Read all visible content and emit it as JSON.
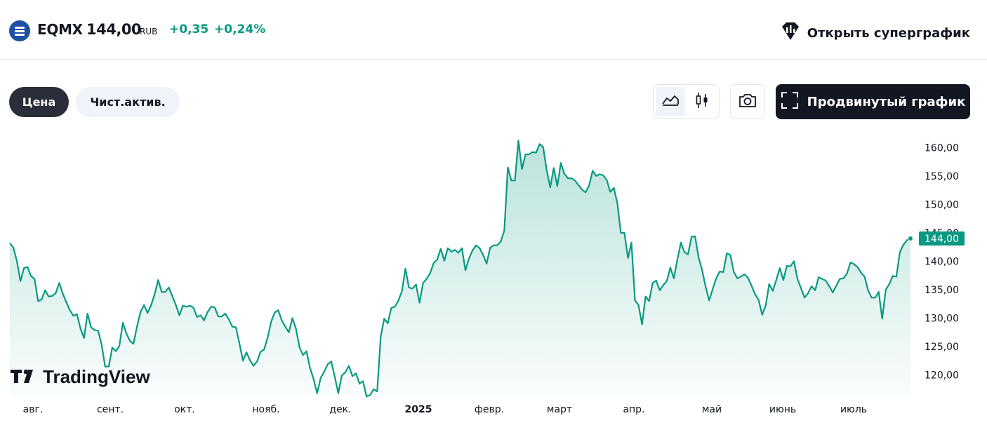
{
  "header": {
    "ticker": "EQMX",
    "price": "144,00",
    "currency": "RUB",
    "change": "+0,35",
    "change_percent": "+0,24%",
    "supergraph_label": "Открыть суперграфик",
    "logo_icon": "fund-logo-icon",
    "positive_color": "#089981"
  },
  "tabs": [
    {
      "label": "Цена",
      "active": true
    },
    {
      "label": "Чист.актив.",
      "active": false
    }
  ],
  "toolbar": {
    "area_chart_icon": "area-chart-icon",
    "candles_icon": "candlestick-icon",
    "camera_icon": "camera-icon",
    "advanced_label": "Продвинутый график"
  },
  "chart_data": {
    "type": "area",
    "x_tick_labels": [
      "авг.",
      "сент.",
      "окт.",
      "нояб.",
      "дек.",
      "2025",
      "февр.",
      "март",
      "апр.",
      "май",
      "июнь",
      "июль"
    ],
    "y_tick_labels": [
      "120,00",
      "125,00",
      "130,00",
      "135,00",
      "140,00",
      "145,00",
      "150,00",
      "155,00",
      "160,00"
    ],
    "ylim": [
      116.5,
      162.5
    ],
    "last_value": 144.0,
    "last_value_label": "144,00",
    "line_color": "#089981",
    "watermark": "TradingView",
    "values": [
      143.2,
      142.4,
      140.0,
      136.5,
      138.8,
      139.0,
      137.4,
      136.9,
      133.0,
      133.3,
      134.9,
      133.8,
      133.9,
      134.4,
      136.2,
      134.3,
      132.8,
      131.4,
      130.4,
      130.7,
      128.2,
      126.5,
      130.8,
      128.4,
      127.9,
      127.8,
      125.3,
      121.5,
      121.5,
      124.8,
      124.2,
      125.1,
      129.2,
      127.3,
      126.0,
      125.5,
      128.5,
      131.1,
      132.3,
      130.9,
      132.3,
      134.2,
      136.7,
      134.6,
      134.6,
      135.4,
      133.9,
      132.3,
      130.5,
      132.2,
      132.0,
      132.2,
      131.8,
      130.2,
      130.5,
      129.6,
      131.1,
      132.0,
      131.9,
      130.3,
      130.3,
      130.8,
      129.8,
      128.5,
      128.4,
      125.6,
      122.5,
      124.0,
      122.6,
      121.6,
      122.4,
      124.1,
      124.5,
      126.6,
      129.4,
      131.0,
      131.4,
      129.6,
      128.5,
      127.5,
      130.0,
      128.2,
      124.9,
      123.5,
      124.2,
      121.2,
      119.3,
      116.8,
      119.5,
      120.6,
      121.9,
      122.4,
      119.7,
      116.8,
      119.9,
      120.5,
      121.6,
      119.8,
      120.3,
      118.5,
      118.9,
      116.2,
      116.5,
      117.5,
      117.1,
      126.7,
      129.9,
      129.1,
      131.8,
      132.0,
      133.1,
      134.7,
      138.7,
      135.4,
      135.2,
      135.9,
      132.7,
      136.2,
      136.9,
      137.9,
      139.7,
      140.3,
      142.2,
      140.1,
      142.3,
      141.7,
      142.0,
      141.5,
      142.3,
      138.4,
      140.5,
      141.9,
      142.8,
      142.3,
      141.1,
      139.6,
      142.4,
      142.8,
      142.8,
      143.5,
      145.4,
      156.5,
      154.2,
      154.2,
      161.2,
      156.2,
      158.8,
      158.8,
      159.2,
      159.1,
      160.6,
      160.1,
      156.0,
      153.0,
      156.4,
      153.2,
      157.3,
      155.4,
      154.6,
      154.6,
      154.2,
      153.4,
      152.6,
      152.1,
      153.3,
      155.9,
      155.0,
      155.3,
      155.1,
      154.3,
      152.2,
      152.9,
      150.2,
      145.0,
      145.0,
      140.6,
      143.3,
      133.1,
      132.3,
      128.9,
      133.8,
      133.0,
      136.2,
      136.6,
      134.9,
      135.8,
      136.5,
      138.9,
      137.0,
      140.3,
      143.3,
      141.6,
      141.2,
      144.3,
      144.4,
      140.7,
      138.5,
      135.5,
      133.1,
      135.1,
      137.0,
      138.2,
      138.1,
      141.4,
      141.1,
      138.1,
      137.0,
      137.3,
      137.7,
      137.1,
      135.7,
      134.2,
      133.2,
      130.6,
      132.2,
      136.0,
      134.8,
      136.7,
      138.8,
      136.7,
      139.2,
      139.1,
      140.0,
      136.9,
      135.3,
      133.6,
      134.4,
      135.6,
      134.9,
      137.2,
      136.9,
      136.6,
      135.6,
      134.5,
      135.7,
      136.9,
      137.0,
      137.8,
      139.8,
      139.5,
      139.0,
      138.0,
      137.3,
      134.9,
      133.6,
      133.6,
      134.6,
      129.9,
      135.0,
      136.0,
      137.4,
      137.3,
      141.6,
      142.9,
      143.7,
      144.0
    ]
  }
}
